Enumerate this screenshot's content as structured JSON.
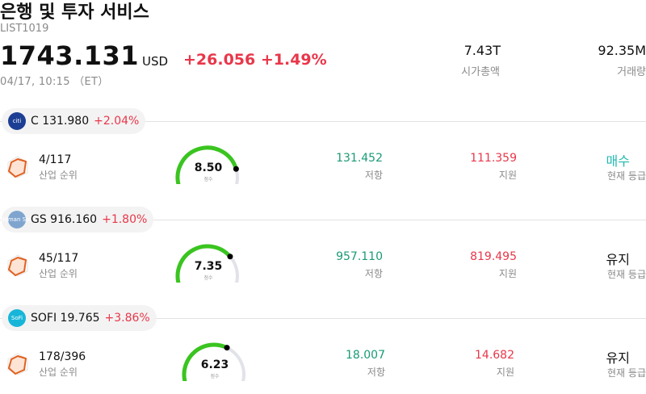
{
  "header": {
    "title": "은행 및 투자 서비스",
    "code": "LIST1019",
    "price": "1743.131",
    "currency": "USD",
    "change": "+26.056 +1.49%",
    "timestamp": "04/17, 10:15 （ET）",
    "market_cap_value": "7.43T",
    "market_cap_label": "시가총액",
    "volume_value": "92.35M",
    "volume_label": "거래량"
  },
  "colors": {
    "up": "#e8374a",
    "resistance": "#1a9a75",
    "buy": "#22b8b0",
    "gauge_green": "#3ac420",
    "gauge_track": "#e2e2ea"
  },
  "stocks": [
    {
      "logo_icon": "citi-logo-icon",
      "logo_text": "citi",
      "ticker_price": "C 131.980",
      "pct": "+2.04%",
      "rank": "4/117",
      "rank_label": "산업 순위",
      "score": "8.50",
      "score_fraction": 0.85,
      "score_label": "점수",
      "resistance": "131.452",
      "resistance_label": "저항",
      "support": "111.359",
      "support_label": "지원",
      "signal": "매수",
      "signal_label": "현재 등급"
    },
    {
      "logo_icon": "goldman-sachs-logo-icon",
      "logo_text": "Goldman Sachs",
      "ticker_price": "GS 916.160",
      "pct": "+1.80%",
      "rank": "45/117",
      "rank_label": "산업 순위",
      "score": "7.35",
      "score_fraction": 0.735,
      "score_label": "점수",
      "resistance": "957.110",
      "resistance_label": "저항",
      "support": "819.495",
      "support_label": "지원",
      "signal": "유지",
      "signal_label": "현재 등급"
    },
    {
      "logo_icon": "sofi-logo-icon",
      "logo_text": "SoFi",
      "ticker_price": "SOFI 19.765",
      "pct": "+3.86%",
      "rank": "178/396",
      "rank_label": "산업 순위",
      "score": "6.23",
      "score_fraction": 0.623,
      "score_label": "점수",
      "resistance": "18.007",
      "resistance_label": "저항",
      "support": "14.682",
      "support_label": "지원",
      "signal": "유지",
      "signal_label": "현재 등급"
    }
  ]
}
